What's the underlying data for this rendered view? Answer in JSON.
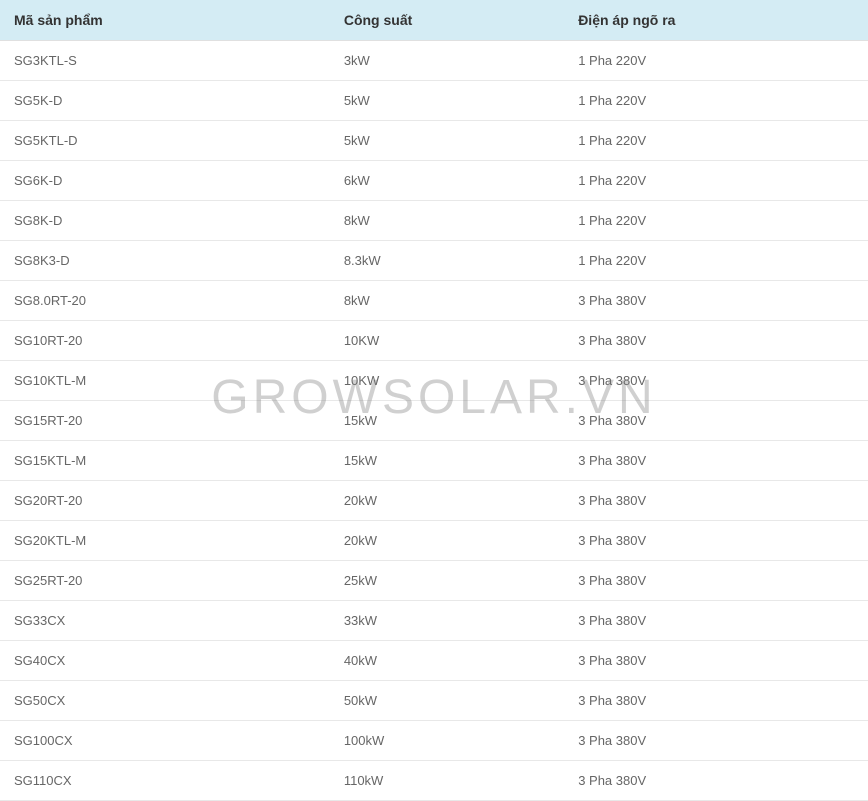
{
  "watermark_text": "GROWSOLAR.VN",
  "table": {
    "header_bg": "#d4ecf4",
    "border_color": "#e8e8e8",
    "header_text_color": "#333333",
    "cell_text_color": "#666666",
    "header_fontsize": 14,
    "cell_fontsize": 13,
    "columns": [
      "Mã sản phẩm",
      "Công suất",
      "Điện áp ngõ ra"
    ],
    "rows": [
      [
        "SG3KTL-S",
        "3kW",
        "1 Pha 220V"
      ],
      [
        "SG5K-D",
        "5kW",
        "1 Pha 220V"
      ],
      [
        "SG5KTL-D",
        "5kW",
        "1 Pha 220V"
      ],
      [
        "SG6K-D",
        "6kW",
        "1 Pha 220V"
      ],
      [
        "SG8K-D",
        "8kW",
        "1 Pha 220V"
      ],
      [
        "SG8K3-D",
        "8.3kW",
        "1 Pha 220V"
      ],
      [
        "SG8.0RT-20",
        "8kW",
        "3 Pha 380V"
      ],
      [
        "SG10RT-20",
        "10KW",
        "3 Pha 380V"
      ],
      [
        "SG10KTL-M",
        "10KW",
        "3 Pha 380V"
      ],
      [
        "SG15RT-20",
        "15kW",
        "3 Pha 380V"
      ],
      [
        "SG15KTL-M",
        "15kW",
        "3 Pha 380V"
      ],
      [
        "SG20RT-20",
        "20kW",
        "3 Pha 380V"
      ],
      [
        "SG20KTL-M",
        "20kW",
        "3 Pha 380V"
      ],
      [
        "SG25RT-20",
        "25kW",
        "3 Pha 380V"
      ],
      [
        "SG33CX",
        "33kW",
        "3 Pha 380V"
      ],
      [
        "SG40CX",
        "40kW",
        "3 Pha 380V"
      ],
      [
        "SG50CX",
        "50kW",
        "3 Pha 380V"
      ],
      [
        "SG100CX",
        "100kW",
        "3 Pha 380V"
      ],
      [
        "SG110CX",
        "110kW",
        "3 Pha 380V"
      ]
    ]
  }
}
